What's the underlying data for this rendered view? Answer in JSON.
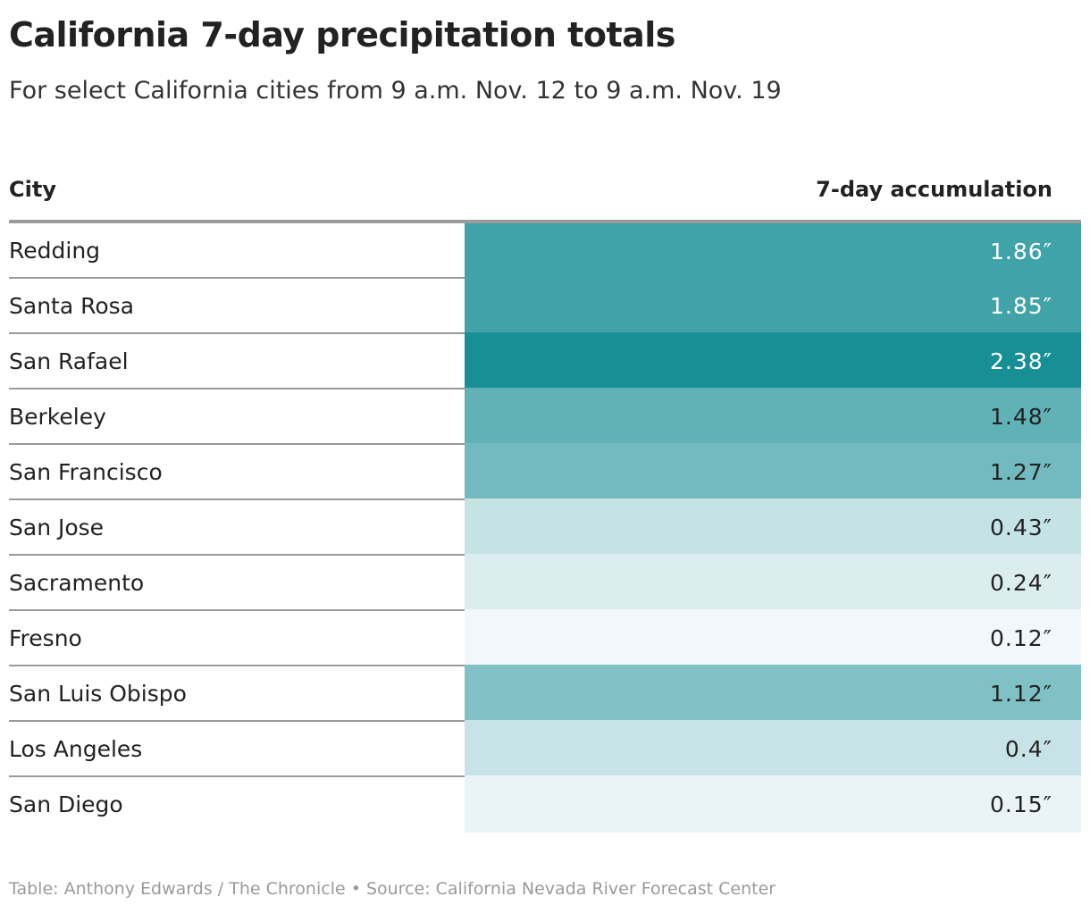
{
  "title": "California 7-day precipitation totals",
  "subtitle": "For select California cities from 9 a.m. Nov. 12 to 9 a.m. Nov. 19",
  "footer": "Table: Anthony Edwards / The Chronicle • Source: California Nevada River Forecast Center",
  "colors": {
    "high": "#178f94",
    "low": "#f1f7fa",
    "text_dark": "#222222",
    "text_light": "#ffffff",
    "rule": "#9a9a9a"
  },
  "chart_data": {
    "type": "table",
    "title": "California 7-day precipitation totals",
    "subtitle": "For select California cities from 9 a.m. Nov. 12 to 9 a.m. Nov. 19",
    "columns": [
      "City",
      "7-day accumulation"
    ],
    "unit": "″",
    "rows": [
      {
        "city": "Redding",
        "value": 1.86,
        "label": "1.86″"
      },
      {
        "city": "Santa Rosa",
        "value": 1.85,
        "label": "1.85″"
      },
      {
        "city": "San Rafael",
        "value": 2.38,
        "label": "2.38″"
      },
      {
        "city": "Berkeley",
        "value": 1.48,
        "label": "1.48″"
      },
      {
        "city": "San Francisco",
        "value": 1.27,
        "label": "1.27″"
      },
      {
        "city": "San Jose",
        "value": 0.43,
        "label": "0.43″"
      },
      {
        "city": "Sacramento",
        "value": 0.24,
        "label": "0.24″"
      },
      {
        "city": "Fresno",
        "value": 0.12,
        "label": "0.12″"
      },
      {
        "city": "San Luis Obispo",
        "value": 1.12,
        "label": "1.12″"
      },
      {
        "city": "Los Angeles",
        "value": 0.4,
        "label": "0.4″"
      },
      {
        "city": "San Diego",
        "value": 0.15,
        "label": "0.15″"
      }
    ],
    "color_scale": {
      "min": 0.12,
      "max": 2.38
    }
  }
}
